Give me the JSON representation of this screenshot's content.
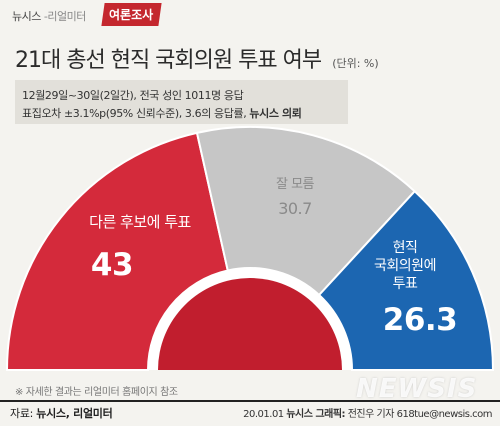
{
  "header": {
    "source_brand_1": "뉴시스",
    "source_brand_2": "-리얼미터",
    "badge": "여론조사"
  },
  "title": "21대 총선 현직 국회의원 투표 여부",
  "unit": "(단위: %)",
  "info": {
    "line1": "12월29일~30일(2일간), 전국 성인 1011명 응답",
    "line2_prefix": "표집오차 ±3.1%p(95% 신뢰수준), 3.6의 응답률,",
    "line2_bold": "뉴시스 의뢰"
  },
  "chart_data": {
    "type": "pie",
    "shape": "semicircle-donut",
    "slices": [
      {
        "label": "다른 후보에 투표",
        "value": 43,
        "display": "43",
        "color": "#d42a3b"
      },
      {
        "label": "잘 모름",
        "value": 30.7,
        "display": "30.7",
        "color": "#c6c6c6"
      },
      {
        "label": "현직 국회의원에 투표",
        "value": 26.3,
        "display": "26.3",
        "color": "#1c66b1"
      }
    ],
    "labels_display": {
      "other": "다른 후보에 투표",
      "unsure": "잘 모름",
      "incumbent_lines": [
        "현직",
        "국회의원에",
        "투표"
      ]
    }
  },
  "footnote": "※ 자세한 결과는 리얼미터 홈페이지 참조",
  "footer": {
    "source_label": "자료:",
    "source_value": "뉴시스, 리얼미터",
    "date": "20.01.01",
    "graphics_label": "뉴시스 그래픽:",
    "credit": "전진우 기자 618tue@newsis.com"
  },
  "watermark": "NEWSIS"
}
